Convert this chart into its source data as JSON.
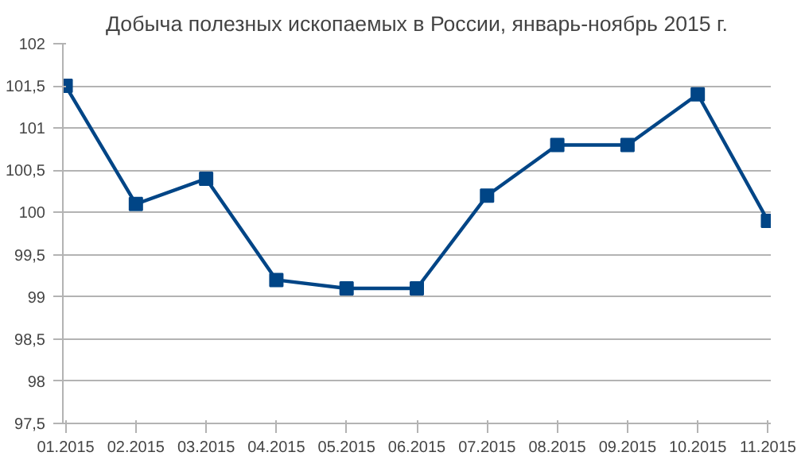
{
  "chart_data": {
    "type": "line",
    "title": "Добыча полезных ископаемых в России, январь-ноябрь 2015 г.",
    "categories": [
      "01.2015",
      "02.2015",
      "03.2015",
      "04.2015",
      "05.2015",
      "06.2015",
      "07.2015",
      "08.2015",
      "09.2015",
      "10.2015",
      "11.2015"
    ],
    "series": [
      {
        "color": "#004586",
        "values": [
          101.5,
          100.1,
          100.4,
          99.2,
          99.1,
          99.1,
          100.2,
          100.8,
          100.8,
          101.4,
          99.9
        ]
      }
    ],
    "ylim": [
      97.5,
      102
    ],
    "yticks": [
      {
        "value": 97.5,
        "label": "97,5"
      },
      98,
      {
        "value": 98.5,
        "label": "98,5"
      },
      99,
      {
        "value": 99.5,
        "label": "99,5"
      },
      100,
      {
        "value": 100.5,
        "label": "100,5"
      },
      101,
      {
        "value": 101.5,
        "label": "101,5"
      },
      102
    ],
    "grid": "y",
    "marker": "square",
    "line_style": "solid"
  }
}
